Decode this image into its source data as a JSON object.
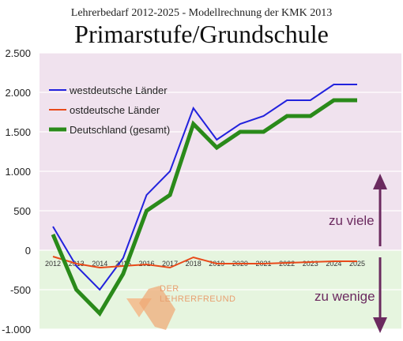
{
  "chart_data": {
    "type": "line",
    "suptitle": "Lehrerbedarf 2012-2025 - Modellrechnung der KMK 2013",
    "title": "Primarstufe/Grundschule",
    "xlabel": "",
    "ylabel": "",
    "x": [
      "2012",
      "2013",
      "2014",
      "2015",
      "2016",
      "2017",
      "2018",
      "2019",
      "2020",
      "2021",
      "2022",
      "2023",
      "2024",
      "2025"
    ],
    "ylim": [
      -1000,
      2500
    ],
    "yticks": [
      2500,
      2000,
      1500,
      1000,
      500,
      0,
      -500,
      -1000
    ],
    "ytick_labels": [
      "2.500",
      "2.000",
      "1.500",
      "1.000",
      "500",
      "0",
      "-500",
      "-1.000"
    ],
    "grid": true,
    "legend_position": "top-left",
    "series": [
      {
        "name": "westdeutsche Länder",
        "color": "#2222dd",
        "values": [
          300,
          -200,
          -500,
          -100,
          700,
          1000,
          1800,
          1400,
          1600,
          1700,
          1900,
          1900,
          2100,
          2100
        ]
      },
      {
        "name": "ostdeutsche Länder",
        "color": "#e84a1a",
        "values": [
          -80,
          -170,
          -220,
          -200,
          -180,
          -220,
          -90,
          -170,
          -170,
          -170,
          -160,
          -150,
          -140,
          -140
        ]
      },
      {
        "name": "Deutschland (gesamt)",
        "color": "#2a8a1a",
        "values": [
          200,
          -500,
          -800,
          -300,
          500,
          700,
          1600,
          1300,
          1500,
          1500,
          1700,
          1700,
          1900,
          1900
        ]
      }
    ],
    "annotations": [
      {
        "text": "zu viele",
        "color": "#6b2a5f"
      },
      {
        "text": "zu wenige",
        "color": "#6b2a5f"
      }
    ],
    "region_colors": {
      "positive": "#f0e2ee",
      "negative": "#e6f5df"
    }
  },
  "watermark": {
    "line1": "DER",
    "line2": "LEHRERFREUND"
  }
}
